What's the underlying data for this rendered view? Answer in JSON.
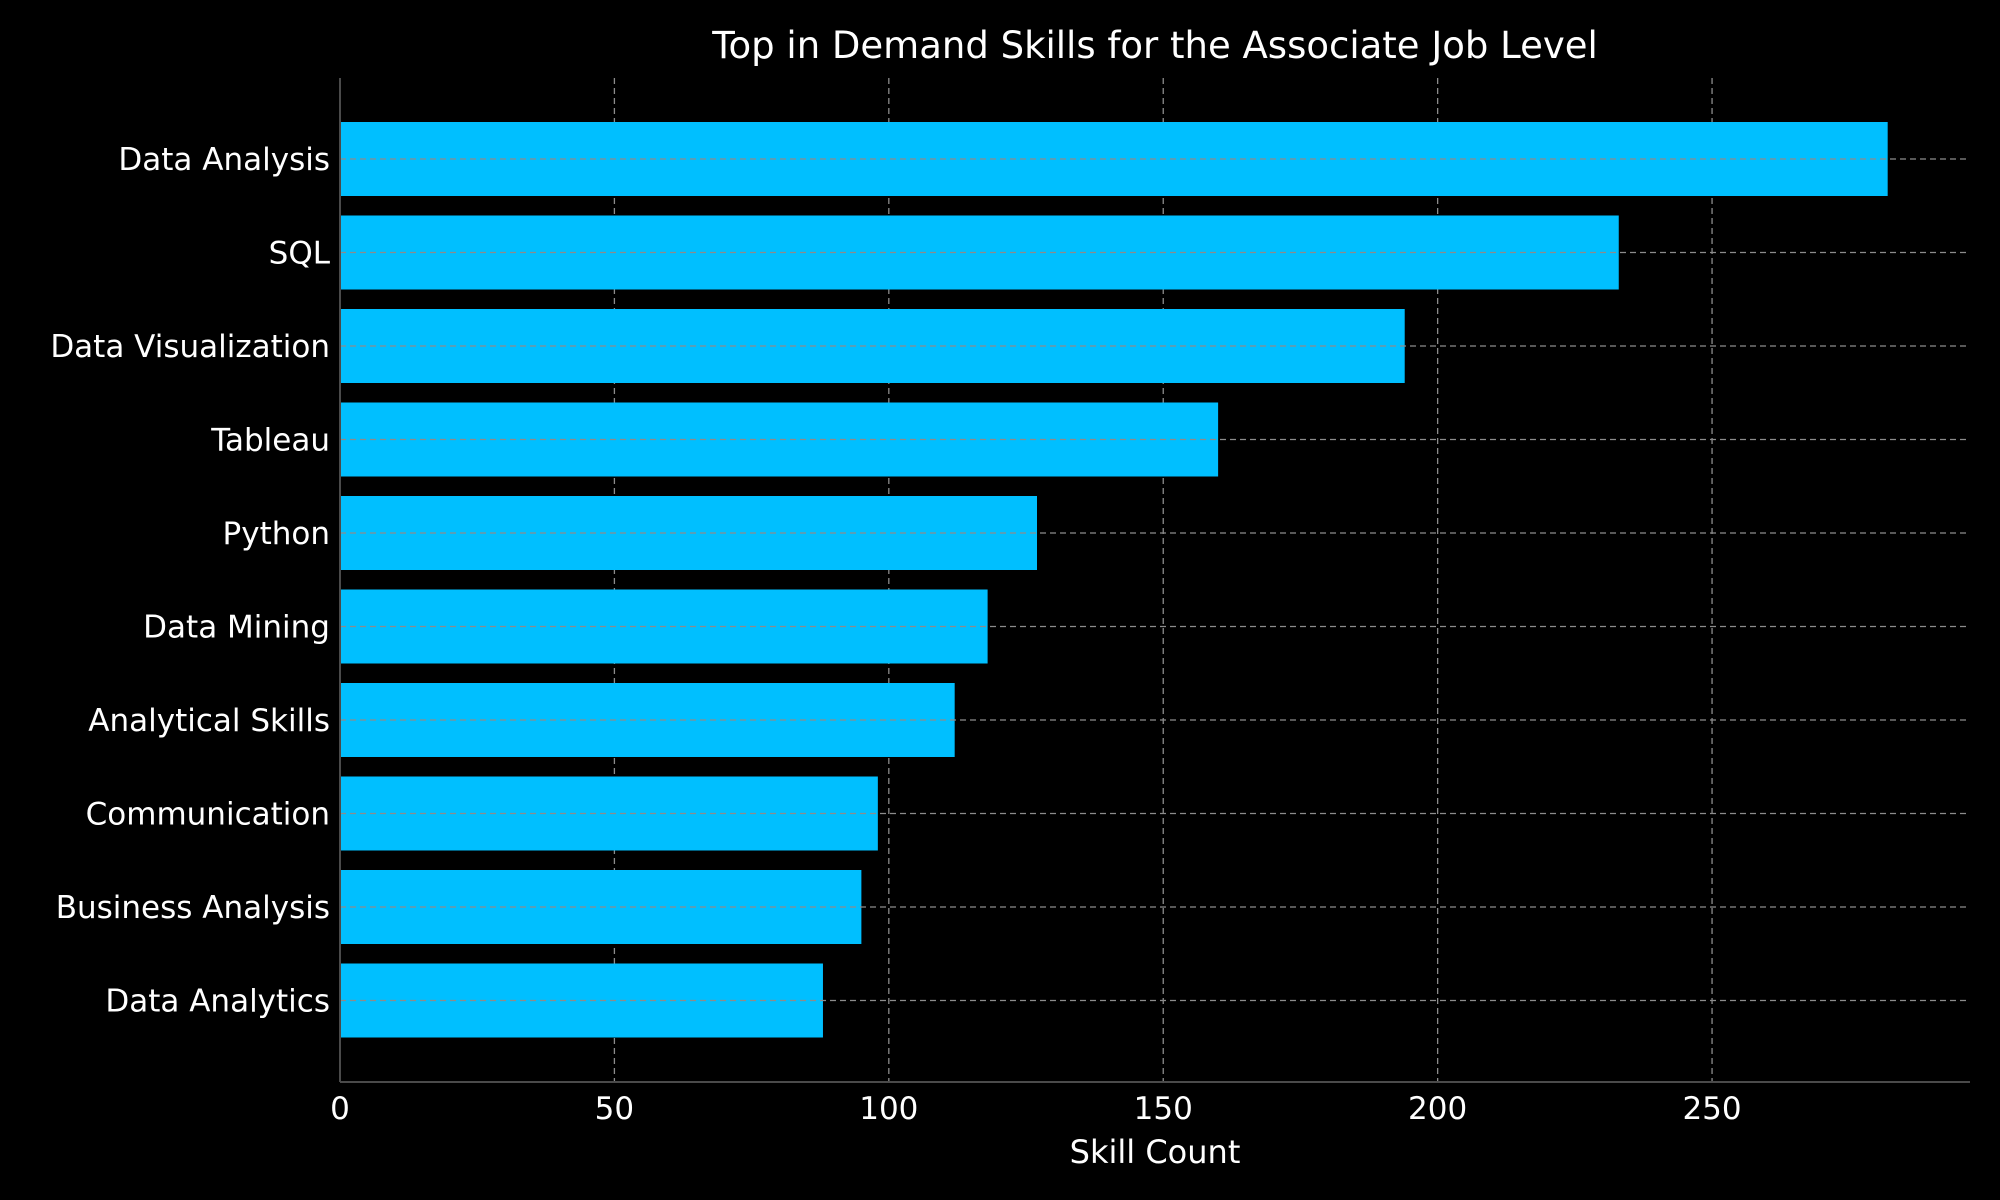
{
  "chart_data": {
    "type": "bar",
    "orientation": "horizontal",
    "title": "Top in Demand Skills for the Associate Job Level",
    "xlabel": "Skill Count",
    "ylabel": "",
    "categories": [
      "Data Analysis",
      "SQL",
      "Data Visualization",
      "Tableau",
      "Python",
      "Data Mining",
      "Analytical Skills",
      "Communication",
      "Business Analysis",
      "Data Analytics"
    ],
    "values": [
      282,
      233,
      194,
      160,
      127,
      118,
      112,
      98,
      95,
      88
    ],
    "xlim": [
      0,
      297
    ],
    "xticks": [
      0,
      50,
      100,
      150,
      200,
      250
    ],
    "grid": true,
    "legend": "none",
    "colors": {
      "background": "#000000",
      "bar": "#00bfff",
      "text": "#ffffff",
      "grid": "#8c8c8c"
    }
  }
}
